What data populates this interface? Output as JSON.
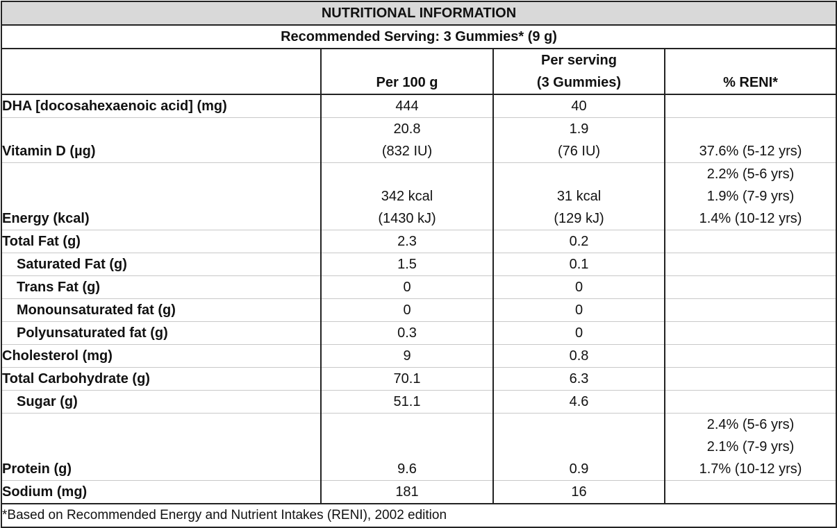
{
  "title": "NUTRITIONAL INFORMATION",
  "serving": "Recommended Serving: 3 Gummies* (9 g)",
  "columns": {
    "per100": "Per 100 g",
    "perServing1": "Per serving",
    "perServing2": "(3 Gummies)",
    "reni": "% RENI*"
  },
  "rows": [
    {
      "label": "DHA [docosahexaenoic acid] (mg)",
      "per100": [
        "444"
      ],
      "serving": [
        "40"
      ],
      "reni": []
    },
    {
      "label": "Vitamin D (µg)",
      "per100": [
        "20.8",
        "(832 IU)"
      ],
      "serving": [
        "1.9",
        "(76 IU)"
      ],
      "reni": [
        "37.6% (5-12 yrs)"
      ]
    },
    {
      "label": "Energy (kcal)",
      "per100": [
        "342 kcal",
        "(1430 kJ)"
      ],
      "serving": [
        "31 kcal",
        "(129 kJ)"
      ],
      "reni": [
        "2.2% (5-6 yrs)",
        "1.9% (7-9 yrs)",
        "1.4% (10-12 yrs)"
      ]
    },
    {
      "label": "Total Fat (g)",
      "per100": [
        "2.3"
      ],
      "serving": [
        "0.2"
      ],
      "reni": []
    },
    {
      "label": "Saturated Fat (g)",
      "per100": [
        "1.5"
      ],
      "serving": [
        "0.1"
      ],
      "reni": []
    },
    {
      "label": "Trans Fat (g)",
      "per100": [
        "0"
      ],
      "serving": [
        "0"
      ],
      "reni": []
    },
    {
      "label": "Monounsaturated fat (g)",
      "per100": [
        "0"
      ],
      "serving": [
        "0"
      ],
      "reni": []
    },
    {
      "label": "Polyunsaturated fat (g)",
      "per100": [
        "0.3"
      ],
      "serving": [
        "0"
      ],
      "reni": []
    },
    {
      "label": "Cholesterol (mg)",
      "per100": [
        "9"
      ],
      "serving": [
        "0.8"
      ],
      "reni": []
    },
    {
      "label": "Total Carbohydrate (g)",
      "per100": [
        "70.1"
      ],
      "serving": [
        "6.3"
      ],
      "reni": []
    },
    {
      "label": "Sugar (g)",
      "per100": [
        "51.1"
      ],
      "serving": [
        "4.6"
      ],
      "reni": []
    },
    {
      "label": "Protein (g)",
      "per100": [
        "9.6"
      ],
      "serving": [
        "0.9"
      ],
      "reni": [
        "2.4% (5-6 yrs)",
        "2.1% (7-9 yrs)",
        "1.7% (10-12 yrs)"
      ]
    },
    {
      "label": "Sodium (mg)",
      "per100": [
        "181"
      ],
      "serving": [
        "16"
      ],
      "reni": []
    }
  ],
  "footnote": "*Based on Recommended Energy and Nutrient Intakes (RENI), 2002 edition"
}
